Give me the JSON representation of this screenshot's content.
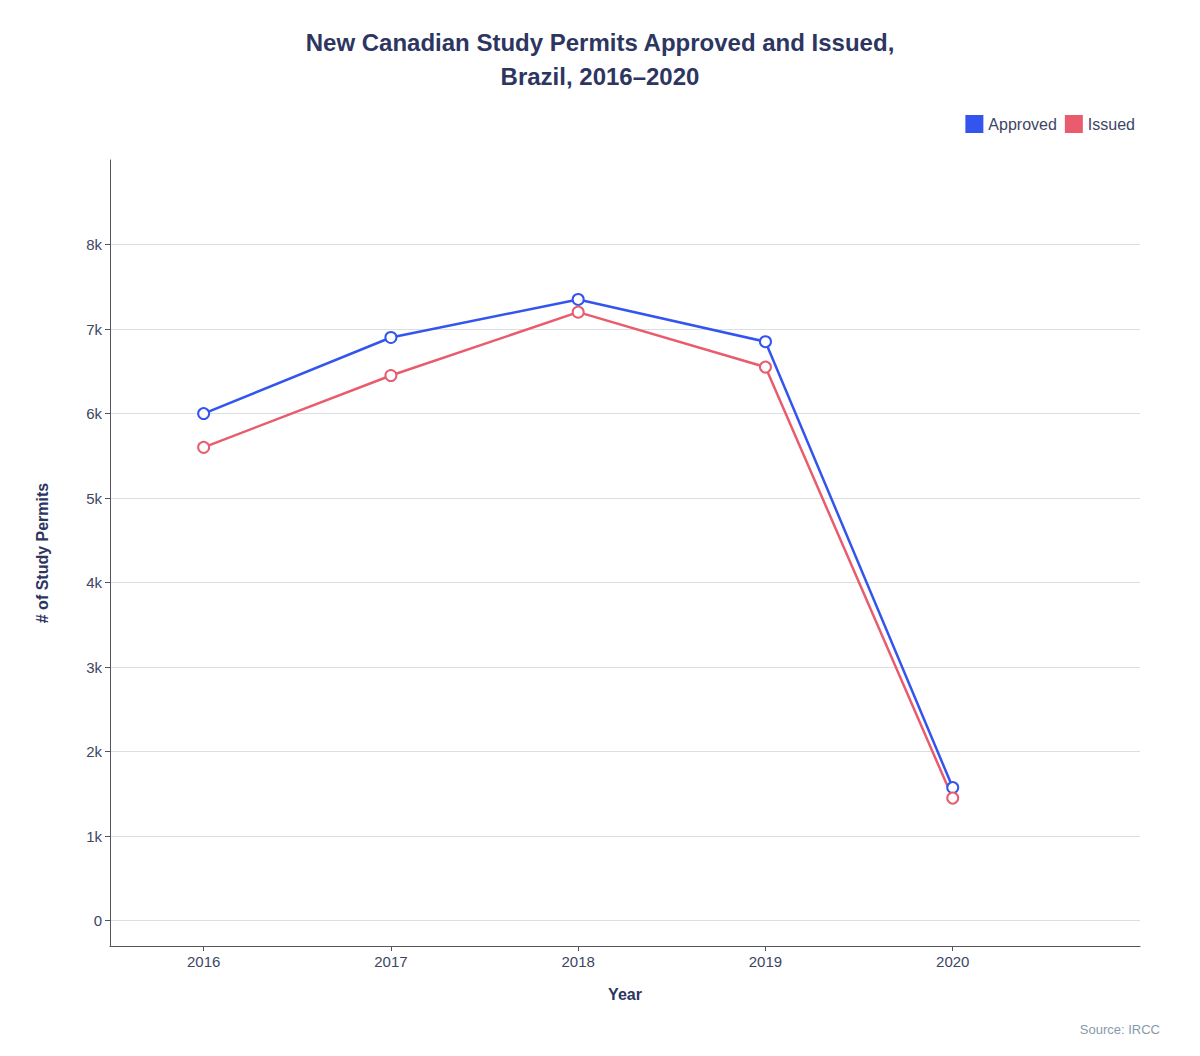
{
  "chart_data": {
    "type": "line",
    "title": "New Canadian Study Permits Approved and Issued,\nBrazil, 2016–2020",
    "xlabel": "Year",
    "ylabel": "# of Study Permits",
    "x": [
      2016,
      2017,
      2018,
      2019,
      2020
    ],
    "series": [
      {
        "name": "Approved",
        "color": "#3355EE",
        "marker": "circle",
        "values": [
          6000,
          6900,
          7350,
          6850,
          1575
        ]
      },
      {
        "name": "Issued",
        "color": "#E85C6E",
        "marker": "circle",
        "values": [
          5600,
          6450,
          7200,
          6550,
          1450
        ]
      }
    ],
    "xlim": [
      2015.5,
      2021.0
    ],
    "xticks": [
      2016,
      2017,
      2018,
      2019,
      2020
    ],
    "ylim": [
      -300,
      9000
    ],
    "yticks": [
      0,
      {
        "value": 1000,
        "label": "1k"
      },
      {
        "value": 2000,
        "label": "2k"
      },
      {
        "value": 3000,
        "label": "3k"
      },
      {
        "value": 4000,
        "label": "4k"
      },
      {
        "value": 5000,
        "label": "5k"
      },
      {
        "value": 6000,
        "label": "6k"
      },
      {
        "value": 7000,
        "label": "7k"
      },
      {
        "value": 8000,
        "label": "8k"
      }
    ],
    "grid": true,
    "legend": "upper right",
    "annotations": [
      {
        "text": "Source: IRCC"
      }
    ]
  }
}
